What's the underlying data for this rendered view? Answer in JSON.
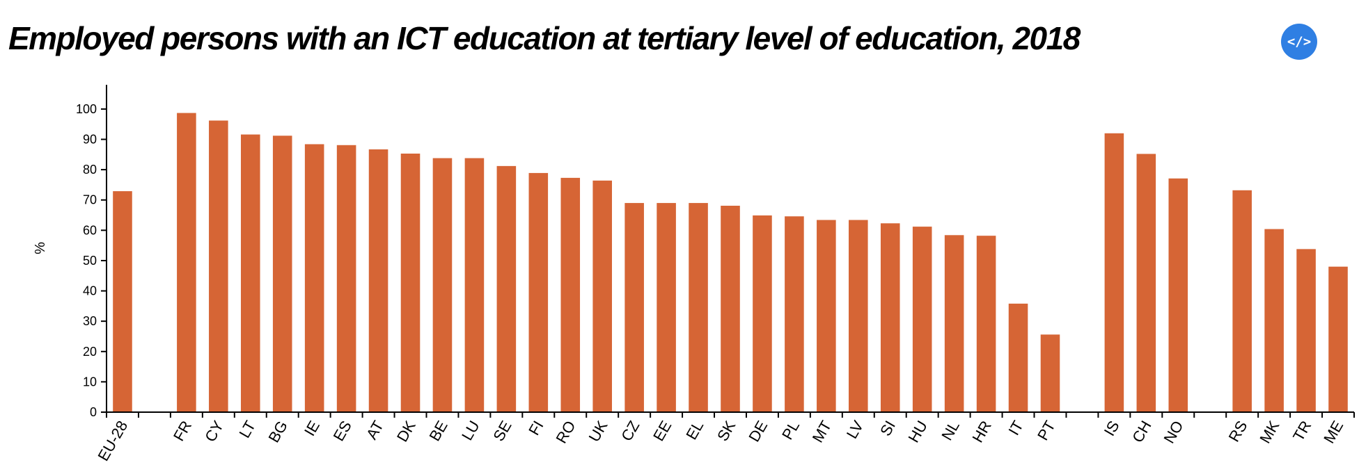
{
  "header": {
    "title": "Employed persons with an ICT education at tertiary level of education, 2018",
    "embed_button_label": "</>"
  },
  "colors": {
    "bar": "#d66535",
    "embed_button": "#2f7fe3"
  },
  "chart_data": {
    "type": "bar",
    "title": "Employed persons with an ICT education at tertiary level of education, 2018",
    "xlabel": "",
    "ylabel": "%",
    "ylim": [
      0,
      108
    ],
    "yticks": [
      0,
      10,
      20,
      30,
      40,
      50,
      60,
      70,
      80,
      90,
      100
    ],
    "grid": false,
    "categories": [
      "EU-28",
      "",
      "FR",
      "CY",
      "LT",
      "BG",
      "IE",
      "ES",
      "AT",
      "DK",
      "BE",
      "LU",
      "SE",
      "FI",
      "RO",
      "UK",
      "CZ",
      "EE",
      "EL",
      "SK",
      "DE",
      "PL",
      "MT",
      "LV",
      "SI",
      "HU",
      "NL",
      "HR",
      "IT",
      "PT",
      "",
      "IS",
      "CH",
      "NO",
      "",
      "RS",
      "MK",
      "TR",
      "ME"
    ],
    "values": [
      72.9,
      null,
      98.7,
      96.2,
      91.6,
      91.2,
      88.4,
      88.1,
      86.7,
      85.3,
      83.8,
      83.8,
      81.2,
      78.9,
      77.3,
      76.4,
      69.0,
      69.0,
      69.0,
      68.1,
      64.9,
      64.6,
      63.4,
      63.4,
      62.3,
      61.2,
      58.4,
      58.2,
      35.8,
      25.6,
      null,
      92.0,
      85.2,
      77.1,
      null,
      73.2,
      60.4,
      53.8,
      48.0
    ]
  }
}
